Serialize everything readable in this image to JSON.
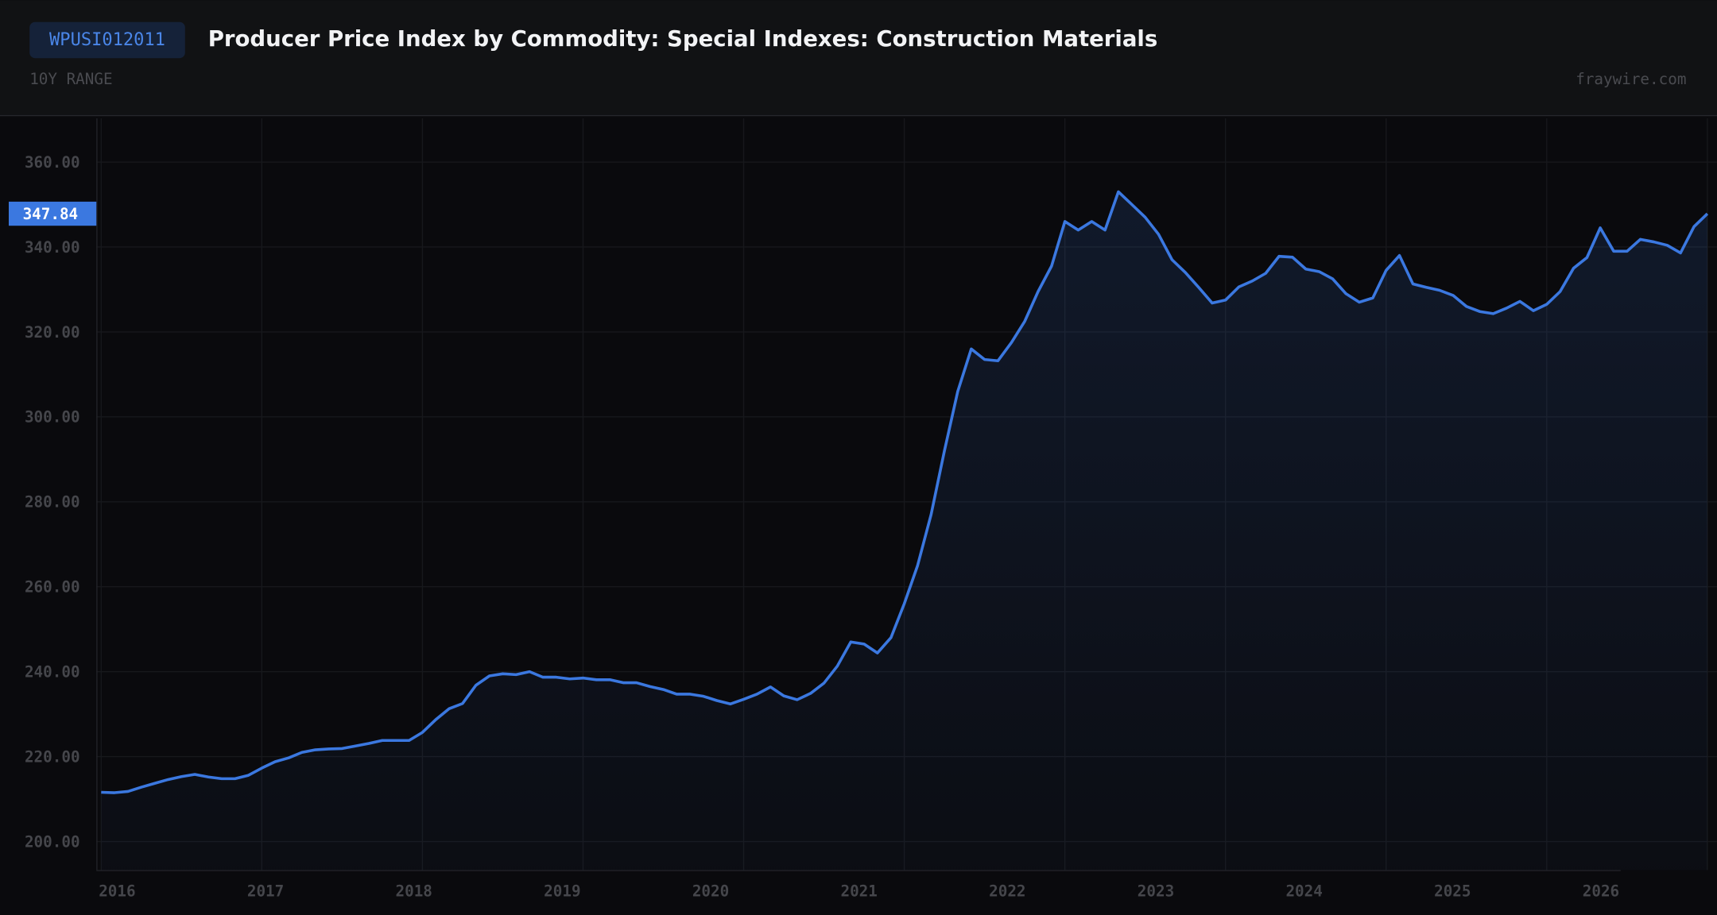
{
  "header": {
    "badge": "WPUSI012011",
    "title": "Producer Price Index by Commodity: Special Indexes: Construction Materials",
    "range": "10Y RANGE",
    "source": "fraywire.com"
  },
  "chart_data": {
    "type": "area",
    "x": [
      2016,
      2016.083,
      2016.167,
      2016.25,
      2016.333,
      2016.417,
      2016.5,
      2016.583,
      2016.667,
      2016.75,
      2016.833,
      2016.917,
      2017,
      2017.083,
      2017.167,
      2017.25,
      2017.333,
      2017.417,
      2017.5,
      2017.583,
      2017.667,
      2017.75,
      2017.833,
      2017.917,
      2018,
      2018.083,
      2018.167,
      2018.25,
      2018.333,
      2018.417,
      2018.5,
      2018.583,
      2018.667,
      2018.75,
      2018.833,
      2018.917,
      2019,
      2019.083,
      2019.167,
      2019.25,
      2019.333,
      2019.417,
      2019.5,
      2019.583,
      2019.667,
      2019.75,
      2019.833,
      2019.917,
      2020,
      2020.083,
      2020.167,
      2020.25,
      2020.333,
      2020.417,
      2020.5,
      2020.583,
      2020.667,
      2020.75,
      2020.833,
      2020.917,
      2021,
      2021.083,
      2021.167,
      2021.25,
      2021.333,
      2021.417,
      2021.5,
      2021.583,
      2021.667,
      2021.75,
      2021.833,
      2021.917,
      2022,
      2022.083,
      2022.167,
      2022.25,
      2022.333,
      2022.417,
      2022.5,
      2022.583,
      2022.667,
      2022.75,
      2022.833,
      2022.917,
      2023,
      2023.083,
      2023.167,
      2023.25,
      2023.333,
      2023.417,
      2023.5,
      2023.583,
      2023.667,
      2023.75,
      2023.833,
      2023.917,
      2024,
      2024.083,
      2024.167,
      2024.25,
      2024.333,
      2024.417,
      2024.5,
      2024.583,
      2024.667,
      2024.75,
      2024.833,
      2024.917,
      2025,
      2025.083,
      2025.167,
      2025.25,
      2025.333,
      2025.417,
      2025.5,
      2025.583,
      2025.667,
      2025.75,
      2025.833,
      2025.917,
      2026
    ],
    "series": [
      {
        "name": "WPUSI012011",
        "color": "#3b78e0",
        "values": [
          211.6,
          211.5,
          211.8,
          212.8,
          213.7,
          214.6,
          215.3,
          215.8,
          215.2,
          214.8,
          214.8,
          215.6,
          217.3,
          218.8,
          219.7,
          221.0,
          221.6,
          221.8,
          221.9,
          222.5,
          223.1,
          223.8,
          223.8,
          223.8,
          225.7,
          228.7,
          231.3,
          232.5,
          236.8,
          239.0,
          239.5,
          239.3,
          240.0,
          238.7,
          238.7,
          238.3,
          238.5,
          238.1,
          238.1,
          237.4,
          237.4,
          236.5,
          235.8,
          234.7,
          234.7,
          234.2,
          233.2,
          232.4,
          233.5,
          234.7,
          236.4,
          234.3,
          233.4,
          234.9,
          237.3,
          241.3,
          247.0,
          246.5,
          244.4,
          248.0,
          256.0,
          265.0,
          277.0,
          292.0,
          306.0,
          316.0,
          313.5,
          313.2,
          317.5,
          322.5,
          329.5,
          335.5,
          346.0,
          344.0,
          346.0,
          344.0,
          353.0,
          350.0,
          347.0,
          343.0,
          337.0,
          334.0,
          330.5,
          326.8,
          327.5,
          330.6,
          332.0,
          333.8,
          337.8,
          337.6,
          334.8,
          334.2,
          332.5,
          329.0,
          327.0,
          328.0,
          334.5,
          338.0,
          331.3,
          330.5,
          329.8,
          328.6,
          326.0,
          324.8,
          324.3,
          325.6,
          327.2,
          325.0,
          326.5,
          329.5,
          335.0,
          337.5,
          344.5,
          339.0,
          339.0,
          341.8,
          341.2,
          340.4,
          338.6,
          344.8,
          347.84
        ]
      }
    ],
    "xlim": [
      2015.97,
      2026.06
    ],
    "ylim": [
      193.3,
      370.3
    ],
    "xticks": [
      2016,
      2017,
      2018,
      2019,
      2020,
      2021,
      2022,
      2023,
      2024,
      2025,
      2026
    ],
    "yticks": [
      {
        "value": 200,
        "label": "200.00"
      },
      {
        "value": 220,
        "label": "220.00"
      },
      {
        "value": 240,
        "label": "240.00"
      },
      {
        "value": 260,
        "label": "260.00"
      },
      {
        "value": 280,
        "label": "280.00"
      },
      {
        "value": 300,
        "label": "300.00"
      },
      {
        "value": 320,
        "label": "320.00"
      },
      {
        "value": 340,
        "label": "340.00"
      },
      {
        "value": 360,
        "label": "360.00"
      }
    ],
    "grid": true
  }
}
